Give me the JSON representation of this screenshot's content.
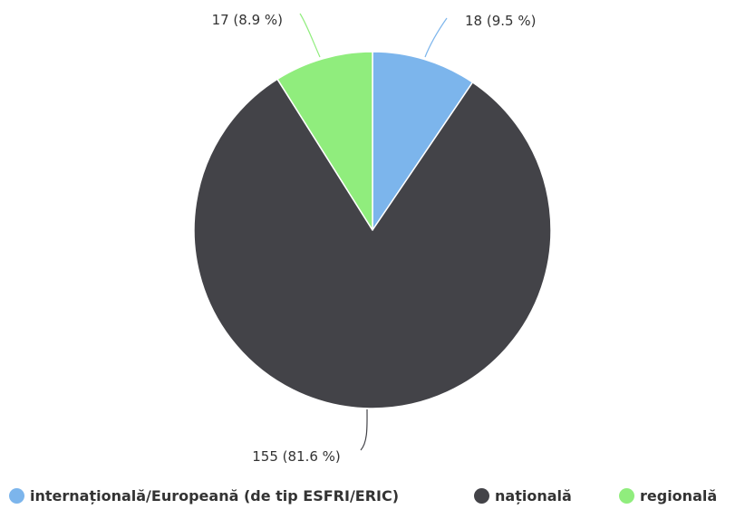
{
  "chart_data": {
    "type": "pie",
    "categories": [
      "internațională/Europeană (de tip ESFRI/ERIC)",
      "națională",
      "regională"
    ],
    "values": [
      18,
      155,
      17
    ],
    "percents": [
      9.5,
      81.6,
      8.9
    ],
    "colors": [
      "#7cb5ec",
      "#434348",
      "#90ed7d"
    ],
    "data_labels": [
      "18 (9.5 %)",
      "155 (81.6 %)",
      "17 (8.9 %)"
    ],
    "legend_position": "bottom"
  }
}
